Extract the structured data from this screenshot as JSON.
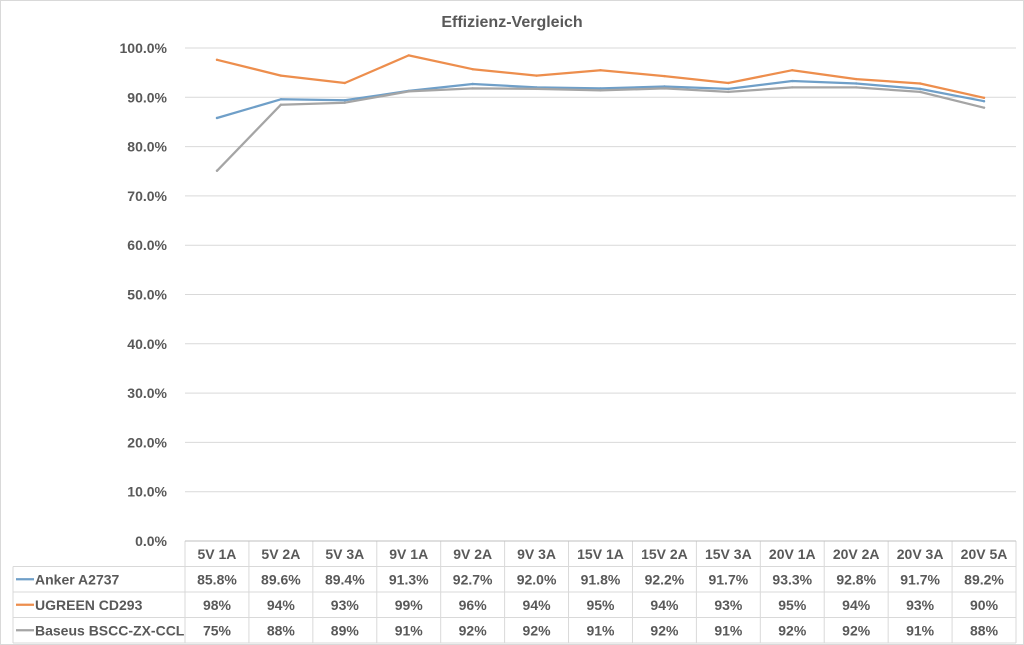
{
  "chart_data": {
    "type": "line",
    "title": "Effizienz-Vergleich",
    "xlabel": "",
    "ylabel": "",
    "ylim": [
      0,
      100
    ],
    "yticks": [
      "0.0%",
      "10.0%",
      "20.0%",
      "30.0%",
      "40.0%",
      "50.0%",
      "60.0%",
      "70.0%",
      "80.0%",
      "90.0%",
      "100.0%"
    ],
    "grid": true,
    "legend": "data-table-left",
    "categories": [
      "5V 1A",
      "5V 2A",
      "5V 3A",
      "9V 1A",
      "9V 2A",
      "9V 3A",
      "15V 1A",
      "15V 2A",
      "15V 3A",
      "20V 1A",
      "20V 2A",
      "20V 3A",
      "20V 5A"
    ],
    "series": [
      {
        "name": "Anker A2737",
        "color": "#6f9fc8",
        "values": [
          85.8,
          89.6,
          89.4,
          91.3,
          92.7,
          92.0,
          91.8,
          92.2,
          91.7,
          93.3,
          92.8,
          91.7,
          89.2
        ],
        "labels": [
          "85.8%",
          "89.6%",
          "89.4%",
          "91.3%",
          "92.7%",
          "92.0%",
          "91.8%",
          "92.2%",
          "91.7%",
          "93.3%",
          "92.8%",
          "91.7%",
          "89.2%"
        ]
      },
      {
        "name": "UGREEN CD293",
        "color": "#ed8e4d",
        "values": [
          97.6,
          94.4,
          92.9,
          98.5,
          95.7,
          94.4,
          95.5,
          94.3,
          92.9,
          95.5,
          93.7,
          92.8,
          89.9
        ],
        "labels": [
          "98%",
          "94%",
          "93%",
          "99%",
          "96%",
          "94%",
          "95%",
          "94%",
          "93%",
          "95%",
          "94%",
          "93%",
          "90%"
        ]
      },
      {
        "name": "Baseus BSCC-ZX-CCL",
        "color": "#a5a5a5",
        "values": [
          75.1,
          88.5,
          88.9,
          91.2,
          91.8,
          91.7,
          91.4,
          91.8,
          91.1,
          92.0,
          92.0,
          91.1,
          87.9
        ],
        "labels": [
          "75%",
          "88%",
          "89%",
          "91%",
          "92%",
          "92%",
          "91%",
          "92%",
          "91%",
          "92%",
          "92%",
          "91%",
          "88%"
        ]
      }
    ]
  }
}
